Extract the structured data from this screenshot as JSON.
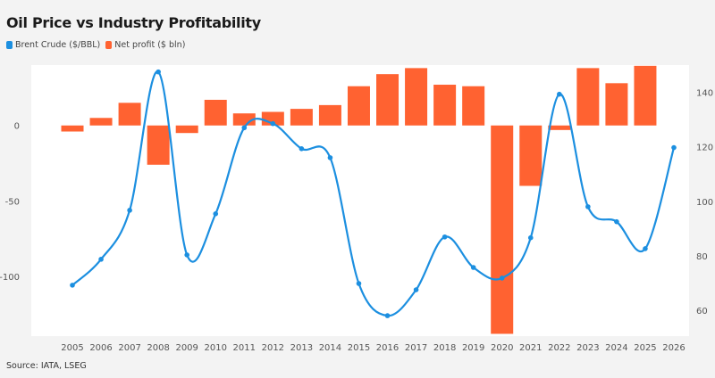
{
  "chart_data": {
    "type": "bar+line",
    "title": "Oil Price vs Industry Profitability",
    "source": "Source: IATA, LSEG",
    "categories": [
      "2005",
      "2006",
      "2007",
      "2008",
      "2009",
      "2010",
      "2011",
      "2012",
      "2013",
      "2014",
      "2015",
      "2016",
      "2017",
      "2018",
      "2019",
      "2020",
      "2021",
      "2022",
      "2023",
      "2024",
      "2025",
      "2026"
    ],
    "series": [
      {
        "name": "Brent Crude ($/BBL)",
        "type": "line",
        "axis": "right",
        "color": "#1c8fe0",
        "values": [
          69.2,
          78.7,
          96.7,
          147.5,
          80.3,
          95.4,
          127,
          128.5,
          119.3,
          116,
          69.8,
          58,
          67.5,
          86.9,
          75.7,
          71.8,
          86.6,
          139.3,
          98,
          92.5,
          82.6,
          119.7
        ]
      },
      {
        "name": "Net profit ($ bln)",
        "type": "bar",
        "axis": "left",
        "color": "#ff6231",
        "values": [
          -4,
          5,
          15,
          -26,
          -5,
          17,
          8,
          9,
          11,
          13.5,
          26,
          34,
          38,
          27,
          26,
          -138,
          -40,
          -3,
          38,
          28,
          39.5,
          null
        ]
      }
    ],
    "left_axis": {
      "ylim": [
        -139.5,
        40
      ],
      "ticks": [
        0,
        -50,
        -100
      ]
    },
    "right_axis": {
      "ylim": [
        50.5,
        150
      ],
      "ticks": [
        140,
        120,
        100,
        80,
        60
      ]
    },
    "grid": false,
    "legend": "top-left"
  }
}
